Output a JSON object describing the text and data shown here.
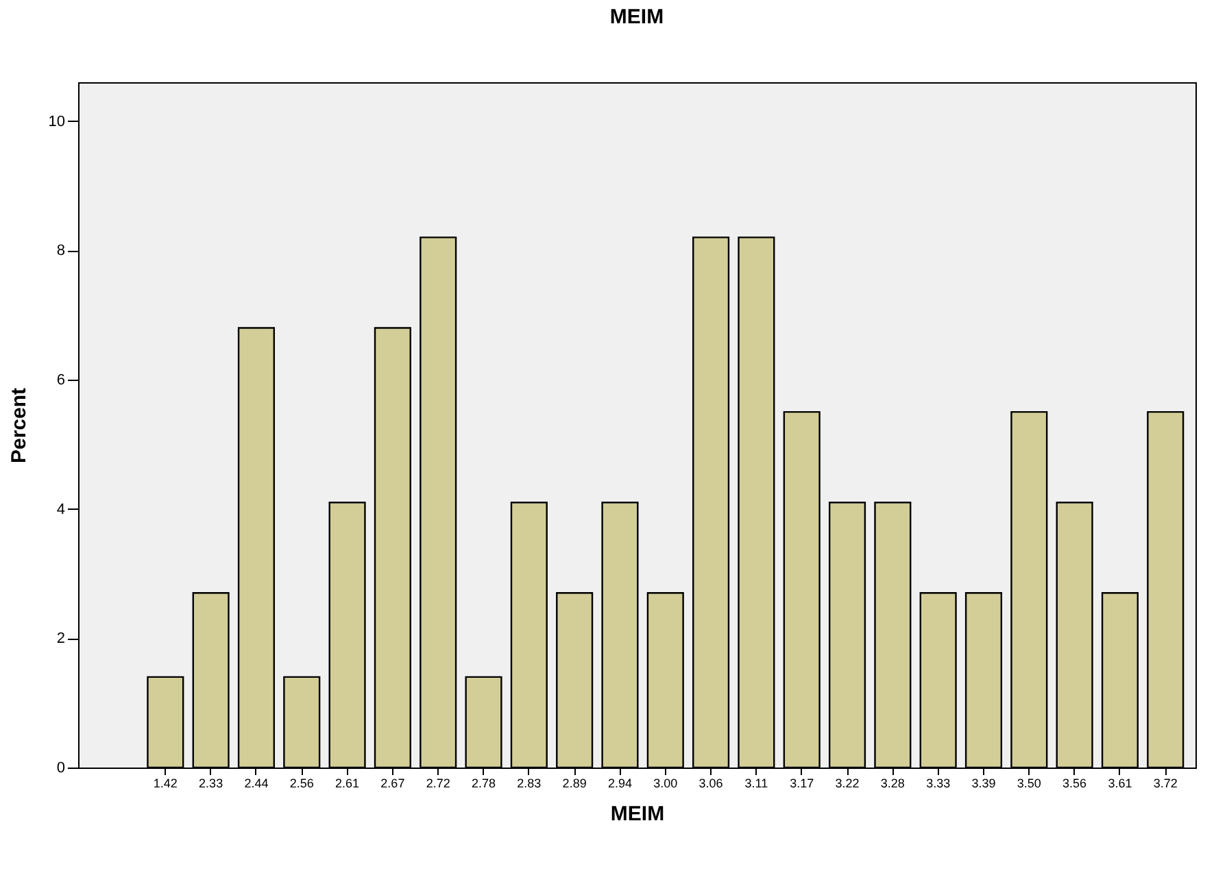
{
  "chart_data": {
    "type": "bar",
    "title": "MEIM",
    "xlabel": "MEIM",
    "ylabel": "Percent",
    "categories": [
      "1.42",
      "2.33",
      "2.44",
      "2.56",
      "2.61",
      "2.67",
      "2.72",
      "2.78",
      "2.83",
      "2.89",
      "2.94",
      "3.00",
      "3.06",
      "3.11",
      "3.17",
      "3.22",
      "3.28",
      "3.33",
      "3.39",
      "3.50",
      "3.56",
      "3.61",
      "3.72"
    ],
    "values": [
      1.4,
      2.7,
      6.8,
      1.4,
      4.1,
      6.8,
      8.2,
      1.4,
      4.1,
      2.7,
      4.1,
      2.7,
      8.2,
      8.2,
      5.5,
      4.1,
      4.1,
      2.7,
      2.7,
      5.5,
      4.1,
      2.7,
      5.5
    ],
    "color": "#d3ce97",
    "ylim": [
      0,
      10.6
    ],
    "yticks": [
      0,
      2,
      4,
      6,
      8,
      10
    ],
    "grid": false
  }
}
